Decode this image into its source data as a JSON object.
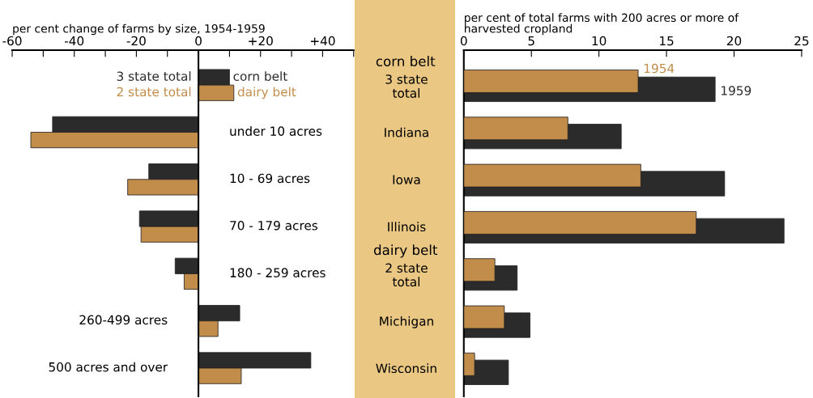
{
  "chart_data": [
    {
      "type": "bar",
      "orientation": "horizontal",
      "xlabel": "per cent change of farms by size, 1954-1959",
      "categories": [
        null,
        "under 10 acres",
        "10 - 69 acres",
        "70 - 179 acres",
        "180 - 259 acres",
        "260-499 acres",
        "500 acres and over"
      ],
      "series": [
        {
          "name": "corn belt",
          "color": "#2b2b2b",
          "values": [
            10,
            -47,
            -16,
            -19,
            -7.5,
            13.3,
            36.2
          ]
        },
        {
          "name": "dairy belt",
          "color": "#c28d4a",
          "values": [
            11.4,
            -54,
            -22.8,
            -18.5,
            -4.6,
            6.3,
            13.8
          ]
        }
      ],
      "annotations": [
        "3 state total",
        "2 state total"
      ],
      "xlim": [
        -60,
        50
      ],
      "xticks": [
        -60,
        {
          "value": -50,
          "label": null
        },
        -40,
        {
          "value": -30,
          "label": null
        },
        -20,
        {
          "value": -10,
          "label": null
        },
        0,
        {
          "value": 10,
          "label": null
        },
        {
          "value": 20,
          "label": "+20"
        },
        {
          "value": 30,
          "label": null
        },
        {
          "value": 40,
          "label": "+40"
        },
        {
          "value": 50,
          "label": null
        }
      ],
      "grid": false,
      "legend": false
    },
    {
      "type": "bar",
      "orientation": "horizontal",
      "xlabel": "per cent of total farms with 200 acres or more of\nharvested cropland",
      "categories": [
        "3 state\ntotal",
        "Indiana",
        "Iowa",
        "Illinois",
        "2 state\ntotal",
        "Michigan",
        "Wisconsin"
      ],
      "series": [
        {
          "name": "1959",
          "color": "#2b2b2b",
          "values": [
            18.6,
            11.65,
            19.3,
            23.7,
            3.95,
            4.9,
            3.3
          ]
        },
        {
          "name": "1954",
          "color": "#c28d4a",
          "values": [
            12.9,
            7.7,
            13.1,
            17.2,
            2.3,
            3.0,
            0.8
          ]
        }
      ],
      "annotations": [
        "corn belt",
        "dairy belt"
      ],
      "xlim": [
        0,
        25
      ],
      "xticks": [
        0,
        5,
        10,
        15,
        20,
        25
      ],
      "grid": false,
      "legend": false
    }
  ]
}
